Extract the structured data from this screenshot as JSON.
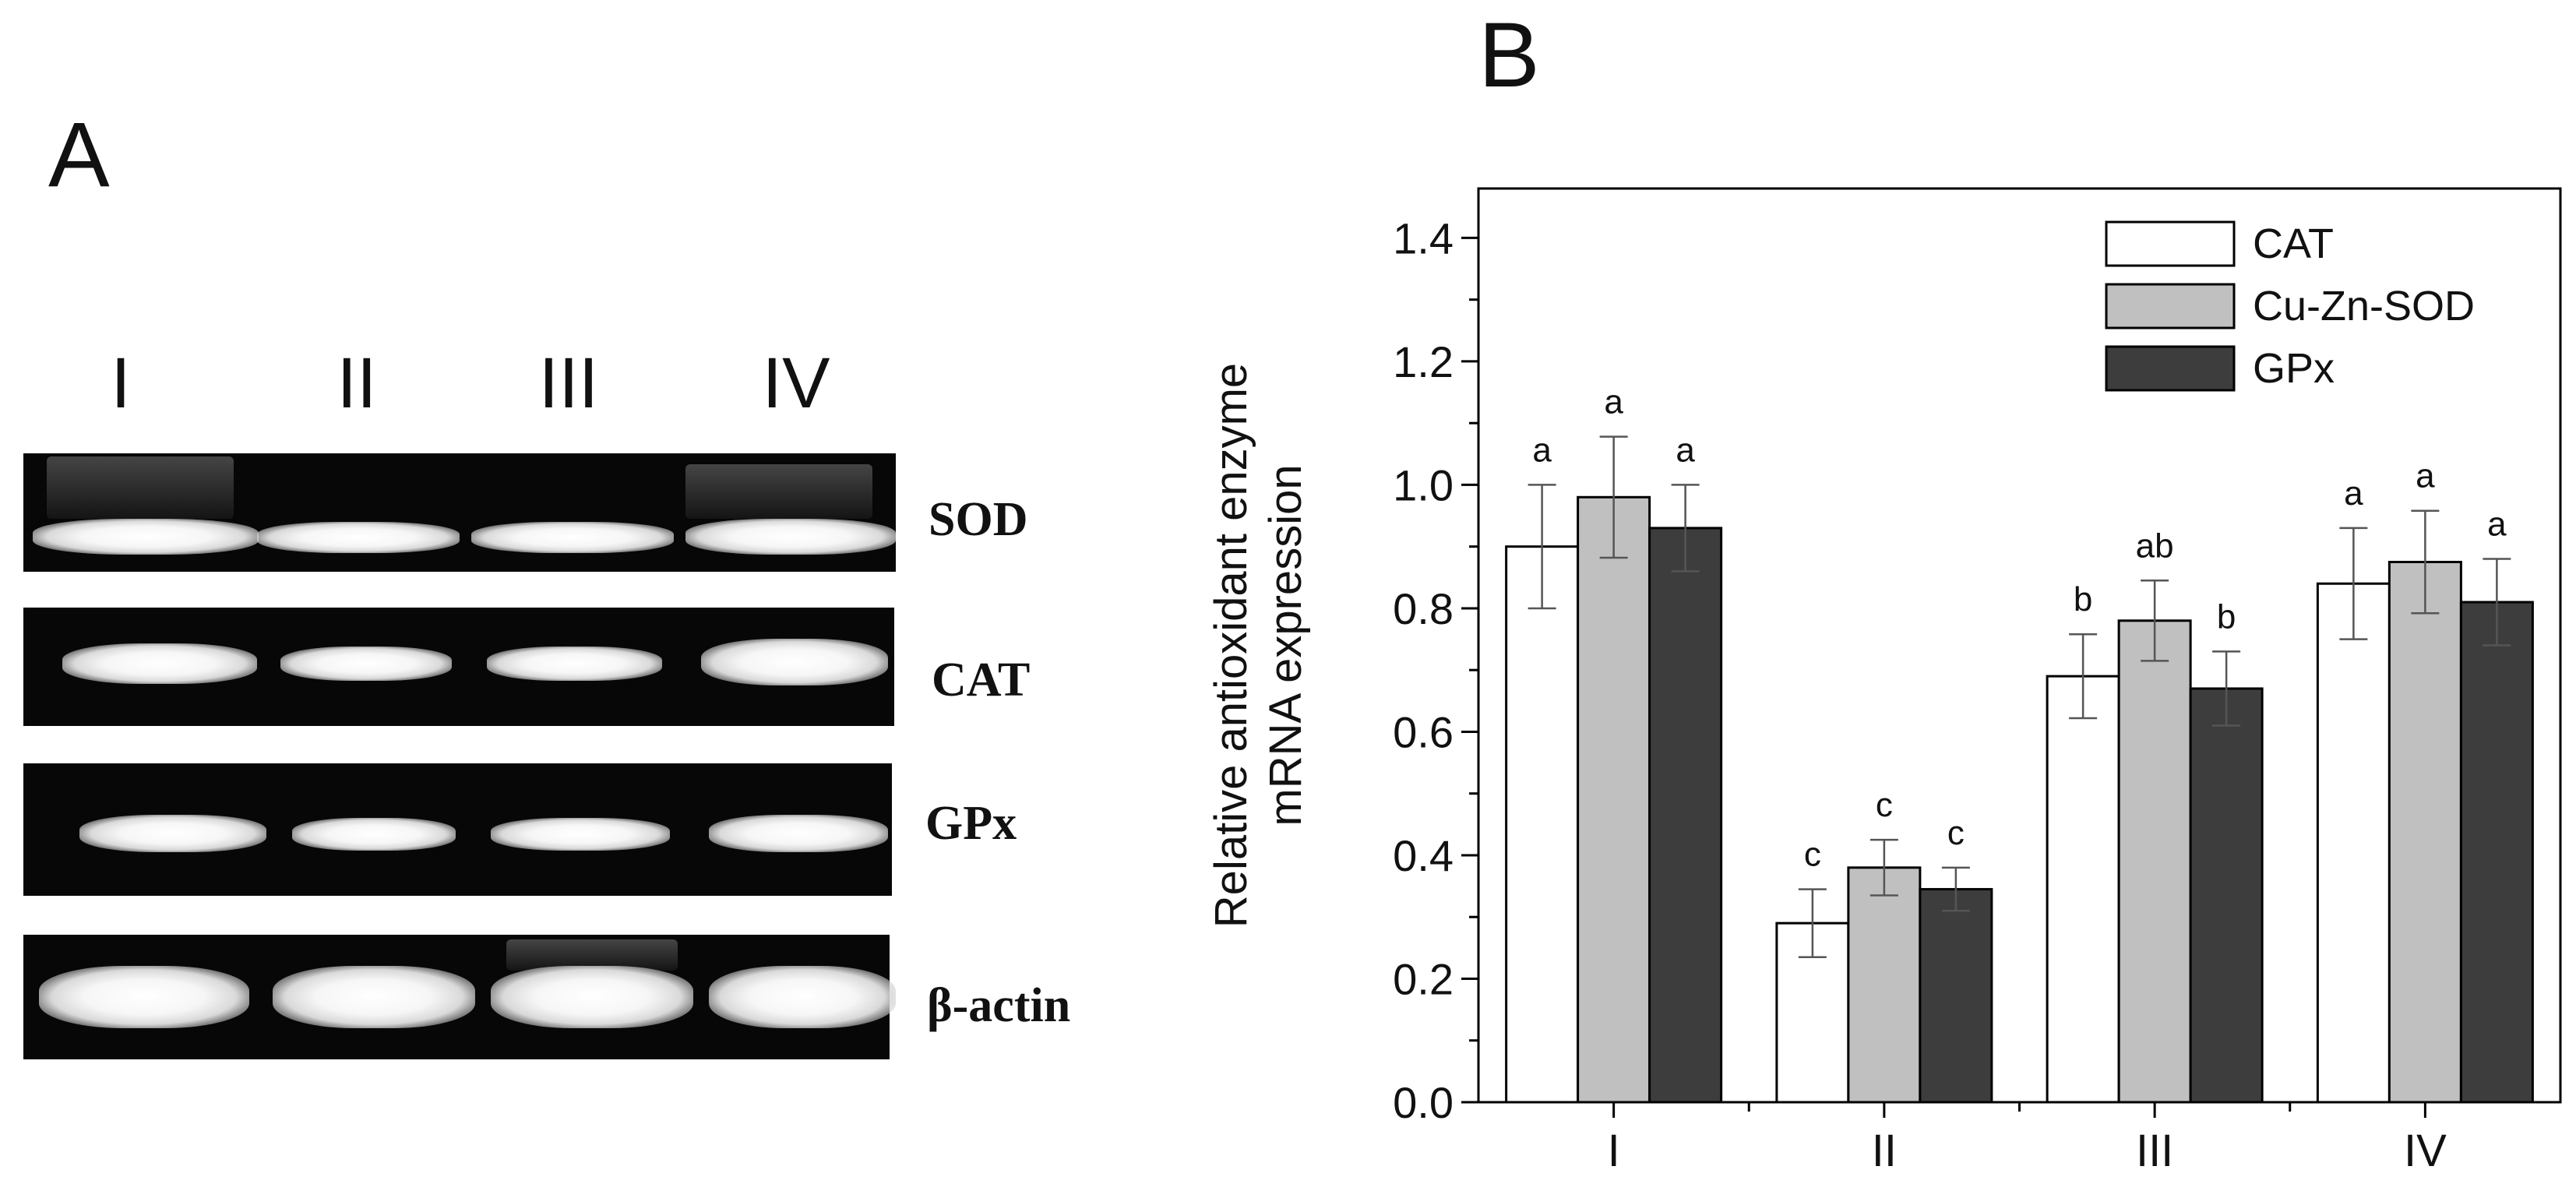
{
  "panel_a": {
    "label": "A",
    "lanes": [
      "I",
      "II",
      "III",
      "IV"
    ],
    "genes": [
      "SOD",
      "CAT",
      "GPx",
      "β-actin"
    ]
  },
  "panel_b": {
    "label": "B"
  },
  "chart_data": {
    "type": "bar",
    "title": "",
    "xlabel": "",
    "ylabel": "Relative antioxidant enzyme mRNA expression",
    "ylabel_lines": [
      "Relative antioxidant enzyme",
      "mRNA expression"
    ],
    "ylim": [
      0,
      1.48
    ],
    "yticks": [
      "0.0",
      "0.2",
      "0.4",
      "0.6",
      "0.8",
      "1.0",
      "1.2",
      "1.4"
    ],
    "categories": [
      "I",
      "II",
      "III",
      "IV"
    ],
    "legend_position": "top-right",
    "series": [
      {
        "name": "CAT",
        "color": "#ffffff",
        "values": [
          0.9,
          0.29,
          0.69,
          0.84
        ],
        "errors": [
          0.1,
          0.055,
          0.068,
          0.09
        ],
        "letters": [
          "a",
          "c",
          "b",
          "a"
        ]
      },
      {
        "name": "Cu-Zn-SOD",
        "color": "#c0c0c0",
        "values": [
          0.98,
          0.38,
          0.78,
          0.875
        ],
        "errors": [
          0.098,
          0.045,
          0.065,
          0.083
        ],
        "letters": [
          "a",
          "c",
          "ab",
          "a"
        ]
      },
      {
        "name": "GPx",
        "color": "#3d3d3d",
        "values": [
          0.93,
          0.345,
          0.67,
          0.81
        ],
        "errors": [
          0.07,
          0.035,
          0.06,
          0.07
        ],
        "letters": [
          "a",
          "c",
          "b",
          "a"
        ]
      }
    ]
  }
}
